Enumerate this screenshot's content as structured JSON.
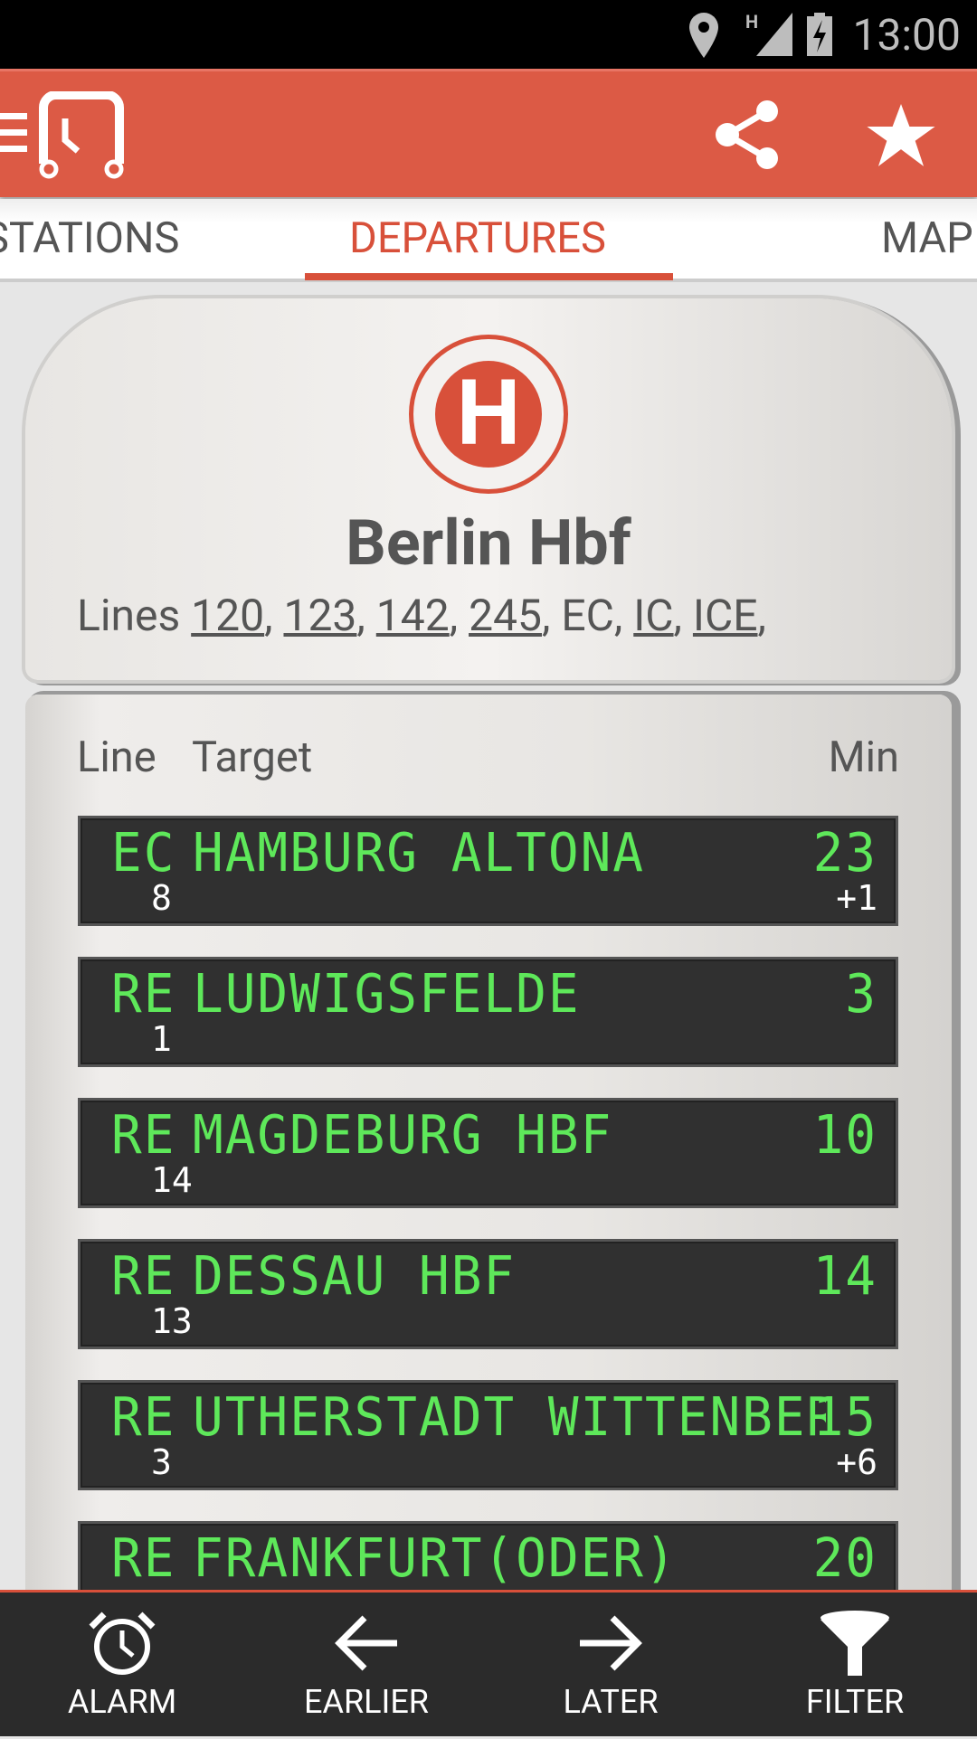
{
  "status_bar": {
    "time": "13:00",
    "network": "H",
    "icons": [
      "location-icon",
      "signal-icon",
      "battery-charging-icon"
    ]
  },
  "app_bar": {
    "icons": [
      "menu-icon",
      "app-logo-icon",
      "share-icon",
      "star-icon"
    ]
  },
  "tabs": [
    {
      "label": "STATIONS"
    },
    {
      "label": "DEPARTURES",
      "active": true
    },
    {
      "label": "MAP"
    }
  ],
  "station": {
    "badge": "H",
    "name": "Berlin Hbf",
    "lines_prefix": "Lines",
    "lines": [
      "120",
      "123",
      "142",
      "245",
      "EC",
      "IC",
      "ICE"
    ],
    "lines_underlined": [
      true,
      true,
      true,
      true,
      false,
      true,
      true
    ]
  },
  "board": {
    "headers": {
      "line": "Line",
      "target": "Target",
      "min": "Min"
    },
    "departures": [
      {
        "line": "EC",
        "target": "HAMBURG ALTONA",
        "min": "23",
        "platform": "8",
        "delay": "+1"
      },
      {
        "line": "RE",
        "target": "LUDWIGSFELDE",
        "min": "3",
        "platform": "1",
        "delay": ""
      },
      {
        "line": "RE",
        "target": "MAGDEBURG HBF",
        "min": "10",
        "platform": "14",
        "delay": ""
      },
      {
        "line": "RE",
        "target": "DESSAU HBF",
        "min": "14",
        "platform": "13",
        "delay": ""
      },
      {
        "line": "RE",
        "target": "UTHERSTADT WITTENBER",
        "min": "15",
        "platform": "3",
        "delay": "+6"
      },
      {
        "line": "RE",
        "target": "FRANKFURT(ODER)",
        "min": "20",
        "platform": "",
        "delay": ""
      }
    ]
  },
  "colors": {
    "accent": "#dc5a45",
    "led_green": "#5ee85a",
    "board_bg": "#303030"
  },
  "bottom_bar": [
    {
      "label": "ALARM",
      "icon": "alarm-icon"
    },
    {
      "label": "EARLIER",
      "icon": "arrow-left-icon"
    },
    {
      "label": "LATER",
      "icon": "arrow-right-icon"
    },
    {
      "label": "FILTER",
      "icon": "filter-icon"
    }
  ]
}
